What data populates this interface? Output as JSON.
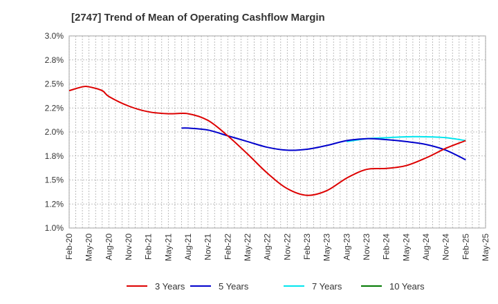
{
  "chart_data": {
    "type": "line",
    "title": "[2747]  Trend of Mean of Operating Cashflow Margin",
    "xlabel": "",
    "ylabel": "",
    "x_ticks": [
      "Feb-20",
      "May-20",
      "Aug-20",
      "Nov-20",
      "Feb-21",
      "May-21",
      "Aug-21",
      "Nov-21",
      "Feb-22",
      "May-22",
      "Aug-22",
      "Nov-22",
      "Feb-23",
      "May-23",
      "Aug-23",
      "Nov-23",
      "Feb-24",
      "May-24",
      "Aug-24",
      "Nov-24",
      "Feb-25",
      "May-25"
    ],
    "y_ticks": [
      "1.0%",
      "1.2%",
      "1.5%",
      "1.8%",
      "2.0%",
      "2.2%",
      "2.5%",
      "2.8%",
      "3.0%"
    ],
    "ylim": [
      1.0,
      3.0
    ],
    "grid": true,
    "legend_position": "bottom",
    "series": [
      {
        "name": "3 Years",
        "color": "#dd0000",
        "x": [
          "Feb-20",
          "Apr-20",
          "May-20",
          "Jul-20",
          "Aug-20",
          "Nov-20",
          "Feb-21",
          "May-21",
          "Aug-21",
          "Nov-21",
          "Feb-22",
          "May-22",
          "Aug-22",
          "Nov-22",
          "Feb-23",
          "May-23",
          "Aug-23",
          "Nov-23",
          "Feb-24",
          "May-24",
          "Aug-24",
          "Nov-24",
          "Feb-25"
        ],
        "values": [
          2.43,
          2.47,
          2.47,
          2.43,
          2.37,
          2.27,
          2.21,
          2.19,
          2.19,
          2.12,
          1.96,
          1.77,
          1.57,
          1.41,
          1.34,
          1.39,
          1.52,
          1.61,
          1.62,
          1.65,
          1.73,
          1.83,
          1.91
        ]
      },
      {
        "name": "5 Years",
        "color": "#0000cc",
        "x": [
          "Jul-21",
          "Aug-21",
          "Nov-21",
          "Feb-22",
          "May-22",
          "Aug-22",
          "Nov-22",
          "Feb-23",
          "May-23",
          "Aug-23",
          "Nov-23",
          "Feb-24",
          "May-24",
          "Aug-24",
          "Nov-24",
          "Feb-25"
        ],
        "values": [
          2.04,
          2.04,
          2.02,
          1.96,
          1.9,
          1.84,
          1.81,
          1.82,
          1.86,
          1.91,
          1.93,
          1.92,
          1.9,
          1.87,
          1.81,
          1.71
        ]
      },
      {
        "name": "7 Years",
        "color": "#00e5ee",
        "x": [
          "Aug-23",
          "Nov-23",
          "Feb-24",
          "May-24",
          "Aug-24",
          "Nov-24",
          "Feb-25"
        ],
        "values": [
          1.9,
          1.93,
          1.94,
          1.95,
          1.95,
          1.94,
          1.91
        ]
      },
      {
        "name": "10 Years",
        "color": "#007700",
        "x": [],
        "values": []
      }
    ]
  }
}
